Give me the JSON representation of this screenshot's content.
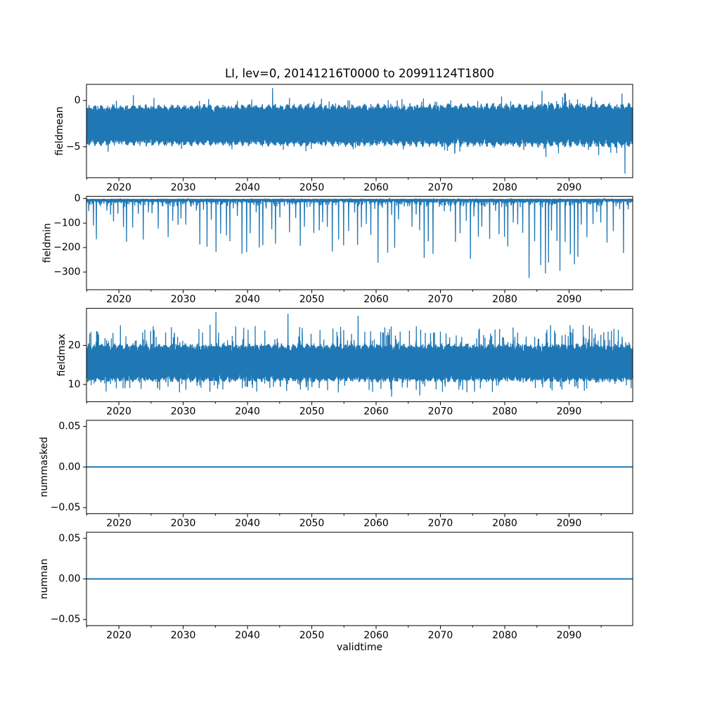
{
  "figure": {
    "title": "LI, lev=0, 20141216T0000 to 20991124T1800",
    "xlabel": "validtime",
    "background_color": "#ffffff",
    "line_color": "#1f77b4",
    "axis_color": "#000000",
    "text_color": "#000000",
    "x_range": [
      2014.96,
      2099.9
    ],
    "xticks": {
      "values": [
        2020,
        2030,
        2040,
        2050,
        2060,
        2070,
        2080,
        2090
      ],
      "labels": [
        "2020",
        "2030",
        "2040",
        "2050",
        "2060",
        "2070",
        "2080",
        "2090"
      ]
    },
    "xminor": [
      2015,
      2025,
      2035,
      2045,
      2055,
      2065,
      2075,
      2085,
      2095
    ],
    "grid": false,
    "legend": "none"
  },
  "chart_data": [
    {
      "type": "line",
      "ylabel": "fieldmean",
      "ylim": [
        -8.35,
        1.75
      ],
      "yticks": {
        "values": [
          0,
          -5
        ],
        "labels": [
          "0",
          "−5"
        ]
      },
      "series": {
        "name": "fieldmean",
        "kind": "band",
        "seed": 42,
        "points": 6000,
        "center": -2.65,
        "halfwidth": 2.05,
        "season_freq": 1,
        "season_amp": 0.1,
        "spread_grow": 0.08,
        "top_base": 0.6,
        "top_rand": 0.4,
        "bot_base": 0.62,
        "bot_rand": 0.4,
        "peak_prob": 0.012,
        "peak_base": 1.05,
        "peak_rand": 0.45,
        "dip_prob": 0.01,
        "dip_base": 1.05,
        "dip_rand": 0.35,
        "extremes": [
          {
            "x": 2043.9,
            "y": 1.35
          },
          {
            "x": 2085.8,
            "y": 1.05
          },
          {
            "x": 2086.4,
            "y": -6.1
          },
          {
            "x": 2094.6,
            "y": -5.9
          },
          {
            "x": 2098.7,
            "y": -7.9
          }
        ],
        "summary": "dense 6-hourly mean of LI field oscillating between about −4.8 and −0.6 around mean ≈ −2.6; extreme max ≈ +1.4 near 2044, extreme min ≈ −7.9 near 2099"
      }
    },
    {
      "type": "line",
      "ylabel": "fieldmin",
      "ylim": [
        -372,
        9
      ],
      "yticks": {
        "values": [
          0,
          -100,
          -200,
          -300
        ],
        "labels": [
          "0",
          "−100",
          "−200",
          "−300"
        ]
      },
      "series": {
        "name": "fieldmin",
        "kind": "spikes",
        "seed": 7,
        "points": 6000,
        "top_min": 1,
        "top_rand": 3,
        "base_min": 3,
        "base_rand": 13,
        "tail_prob": 0.15,
        "tail_rand": 20,
        "spike_floor": 30,
        "depth_base": 140,
        "depth_grow": 200,
        "depth_pow": 1.3,
        "gap_min": 0.45,
        "gap_rand": 0.55,
        "max_depth": -362,
        "summary": "field minimum: baseline between about −2 and −35 with quasi-annual downward spikes; depths grow from ≈ −60…−170 before 2030 to ≈ −200…−360 after 2070"
      }
    },
    {
      "type": "line",
      "ylabel": "fieldmax",
      "ylim": [
        5.6,
        29.5
      ],
      "yticks": {
        "values": [
          20,
          10
        ],
        "labels": [
          "20",
          "10"
        ]
      },
      "series": {
        "name": "fieldmax",
        "kind": "band",
        "seed": 99,
        "points": 6000,
        "center": 15.6,
        "halfwidth": 4.75,
        "season_freq": 1,
        "season_amp": 0.08,
        "spread_grow": 0.0,
        "top_base": 0.55,
        "top_rand": 0.42,
        "bot_base": 0.58,
        "bot_rand": 0.42,
        "peak_prob": 0.06,
        "peak_base": 1.02,
        "peak_rand": 0.9,
        "dip_prob": 0.035,
        "dip_base": 1.02,
        "dip_rand": 0.55,
        "extremes": [
          {
            "x": 2035.1,
            "y": 28.6
          },
          {
            "x": 2046.3,
            "y": 28.1
          },
          {
            "x": 2057.2,
            "y": 27.6
          },
          {
            "x": 2062.4,
            "y": 6.9
          },
          {
            "x": 2066.8,
            "y": 7.2
          }
        ],
        "summary": "field maximum: dense oscillation between about 8 and 21 around ≈ 15.5 with quasi-annual peaks to 22–28; extreme max ≈ 28.6 near 2035, extreme min ≈ 6.9 near 2062"
      }
    },
    {
      "type": "line",
      "ylabel": "nummasked",
      "ylim": [
        -0.0575,
        0.0575
      ],
      "yticks": {
        "values": [
          0.05,
          0,
          -0.05
        ],
        "labels": [
          "0.05",
          "0.00",
          "−0.05"
        ]
      },
      "series": {
        "name": "nummasked",
        "kind": "constant",
        "value": 0,
        "summary": "number of masked points: constant 0 over the whole period"
      }
    },
    {
      "type": "line",
      "ylabel": "numnan",
      "ylim": [
        -0.0575,
        0.0575
      ],
      "yticks": {
        "values": [
          0.05,
          0,
          -0.05
        ],
        "labels": [
          "0.05",
          "0.00",
          "−0.05"
        ]
      },
      "series": {
        "name": "numnan",
        "kind": "constant",
        "value": 0,
        "summary": "number of NaN points: constant 0 over the whole period"
      }
    }
  ]
}
